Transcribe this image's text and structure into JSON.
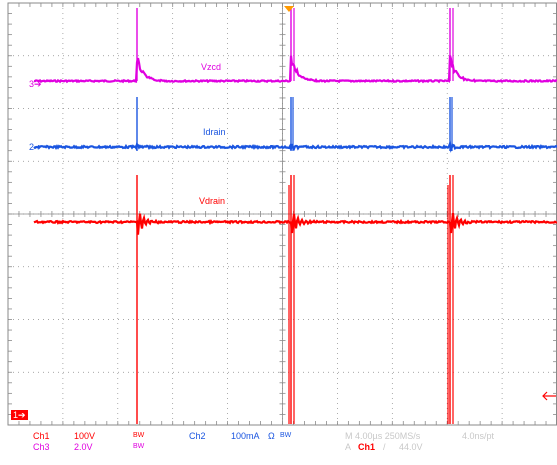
{
  "colors": {
    "ch1": "#ff0000",
    "ch2": "#1a55e0",
    "ch3": "#e000e0",
    "grid": "#8a8a8a",
    "trigger": "#ff9900",
    "disabled": "#c8c8c8"
  },
  "traces": {
    "ch3_label": "Vzcd",
    "ch2_label": "Idrain",
    "ch1_label": "Vdrain"
  },
  "markers": {
    "ch3": "3",
    "ch2": "2",
    "ch1": "1"
  },
  "readouts": {
    "ch1_name": "Ch1",
    "ch1_scale": "100V",
    "ch1_bw": "BW",
    "ch3_name": "Ch3",
    "ch3_scale": "2.0V",
    "ch3_bw": "BW",
    "ch2_name": "Ch2",
    "ch2_scale": "100mA",
    "ch2_ohm": "Ω",
    "ch2_bw": "BW",
    "timebase": "M 4.00µs 250MS/s",
    "resolution": "4.0ns/pt",
    "trigger_prefix": "A",
    "trigger_source": "Ch1",
    "trigger_slope": "/",
    "trigger_level": "44.0V"
  }
}
